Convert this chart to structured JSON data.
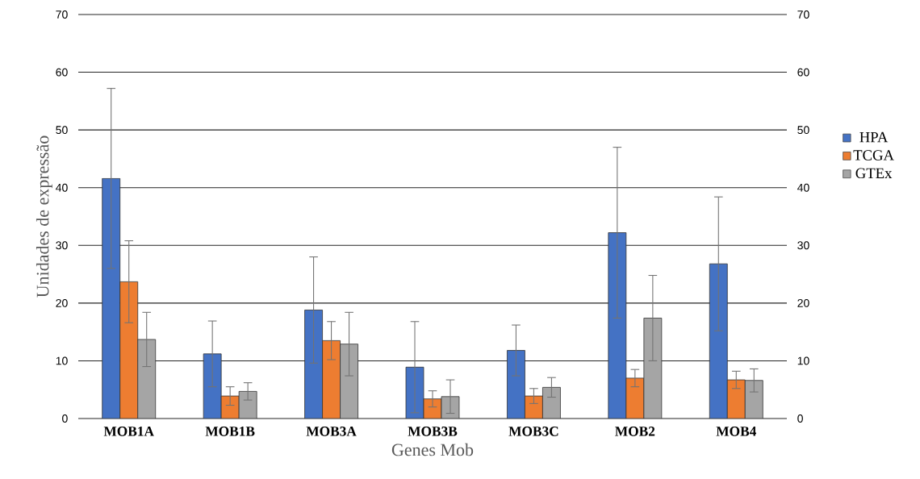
{
  "chart_data": {
    "type": "bar",
    "xlabel": "Genes Mob",
    "ylabel": "Unidades de expressão",
    "categories": [
      "MOB1A",
      "MOB1B",
      "MOB3A",
      "MOB3B",
      "MOB3C",
      "MOB2",
      "MOB4"
    ],
    "series": [
      {
        "name": "HPA",
        "color": "#4472c4",
        "values": [
          41.6,
          11.2,
          18.8,
          8.9,
          11.8,
          32.2,
          26.8
        ],
        "errors": [
          15.6,
          5.7,
          9.2,
          7.9,
          4.4,
          14.8,
          11.6
        ]
      },
      {
        "name": "TCGA",
        "color": "#ed7d31",
        "values": [
          23.7,
          3.9,
          13.5,
          3.4,
          3.9,
          7.0,
          6.7
        ],
        "errors": [
          7.1,
          1.6,
          3.3,
          1.4,
          1.3,
          1.5,
          1.5
        ]
      },
      {
        "name": "GTEx",
        "color": "#a5a5a5",
        "values": [
          13.7,
          4.7,
          12.9,
          3.8,
          5.4,
          17.4,
          6.6
        ],
        "errors": [
          4.7,
          1.5,
          5.5,
          2.9,
          1.7,
          7.4,
          2.0
        ]
      }
    ],
    "ylim": [
      0,
      70
    ],
    "yticks": [
      0,
      10,
      20,
      30,
      40,
      50,
      60,
      70
    ],
    "y2lim": [
      0,
      70
    ],
    "y2ticks": [
      0,
      10,
      20,
      30,
      40,
      50,
      60,
      70
    ],
    "grid": "y",
    "legend": "right"
  }
}
